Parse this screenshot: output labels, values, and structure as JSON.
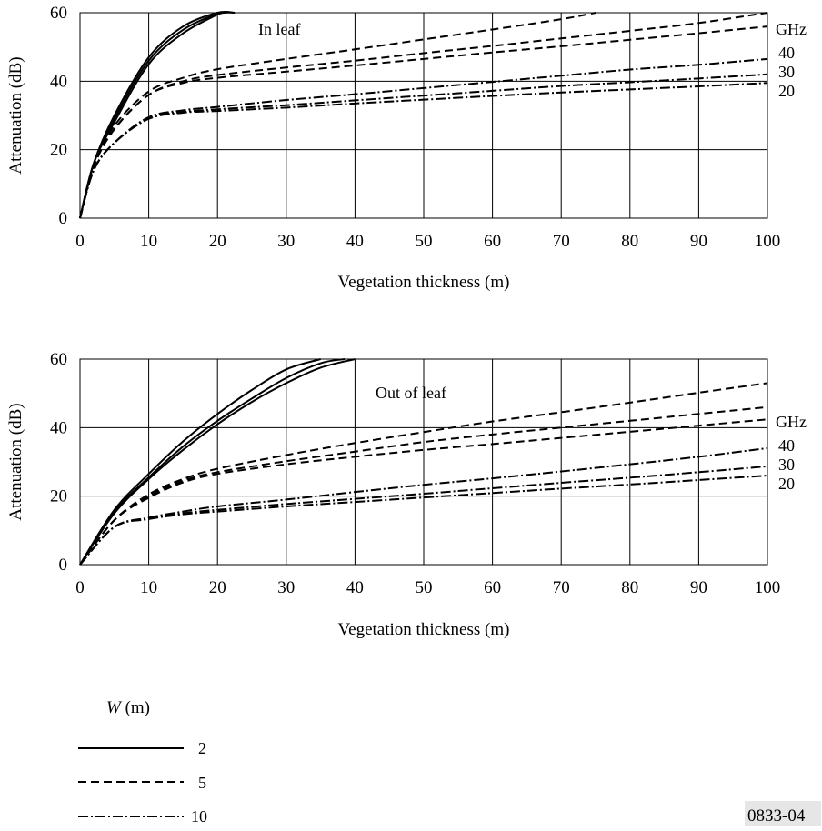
{
  "chart_data": [
    {
      "type": "line",
      "annotation": "In leaf",
      "xlabel": "Vegetation thickness (m)",
      "ylabel": "Attenuation (dB)",
      "xlim": [
        0,
        100
      ],
      "ylim": [
        0,
        60
      ],
      "xticks": [
        "0",
        "10",
        "20",
        "30",
        "40",
        "50",
        "60",
        "70",
        "80",
        "90",
        "100"
      ],
      "yticks": [
        "0",
        "20",
        "40",
        "60"
      ],
      "grid": true,
      "freq_unit": "GHz",
      "freq_labels": [
        "40",
        "30",
        "20"
      ],
      "series": [
        {
          "w": "2",
          "freq": "40",
          "style": "solid",
          "x": [
            0,
            2,
            5,
            10,
            15,
            20,
            22.5
          ],
          "y": [
            0,
            16,
            30,
            47,
            56,
            60,
            60
          ]
        },
        {
          "w": "2",
          "freq": "30",
          "style": "solid",
          "x": [
            0,
            2,
            5,
            10,
            15,
            20,
            22.5
          ],
          "y": [
            0,
            16,
            29,
            46,
            55,
            59.6,
            60
          ]
        },
        {
          "w": "2",
          "freq": "20",
          "style": "solid",
          "x": [
            0,
            2,
            5,
            10,
            15,
            20
          ],
          "y": [
            0,
            16,
            28,
            45,
            54,
            59.5
          ]
        },
        {
          "w": "5",
          "freq": "40",
          "style": "dashed",
          "x": [
            0,
            2,
            5,
            10,
            15,
            20,
            30,
            40,
            50,
            60,
            70,
            75
          ],
          "y": [
            0,
            15,
            27,
            37,
            41,
            43.5,
            46.5,
            49.3,
            52.2,
            55.1,
            58.1,
            60
          ]
        },
        {
          "w": "5",
          "freq": "30",
          "style": "dashed",
          "x": [
            0,
            2,
            5,
            10,
            15,
            20,
            30,
            40,
            50,
            60,
            70,
            80,
            90,
            100
          ],
          "y": [
            0,
            15,
            26,
            36,
            40,
            41.8,
            44,
            46,
            48.2,
            50.3,
            52.5,
            54.7,
            57,
            60
          ]
        },
        {
          "w": "5",
          "freq": "20",
          "style": "dashed",
          "x": [
            0,
            2,
            5,
            10,
            15,
            20,
            30,
            40,
            50,
            60,
            70,
            80,
            90,
            100
          ],
          "y": [
            0,
            15,
            26,
            36,
            39.5,
            41,
            42.8,
            44.6,
            46.5,
            48.4,
            50.2,
            52.1,
            54,
            56
          ]
        },
        {
          "w": "10",
          "freq": "40",
          "style": "dashdot",
          "x": [
            0,
            2,
            5,
            10,
            15,
            20,
            30,
            40,
            50,
            60,
            70,
            80,
            90,
            100
          ],
          "y": [
            0,
            14,
            22,
            29.5,
            31.5,
            32.5,
            34.5,
            36.2,
            38,
            39.8,
            41.6,
            43.4,
            44.8,
            46.5
          ]
        },
        {
          "w": "10",
          "freq": "30",
          "style": "dashdot",
          "x": [
            0,
            2,
            5,
            10,
            15,
            20,
            30,
            40,
            50,
            60,
            70,
            80,
            90,
            100
          ],
          "y": [
            0,
            14,
            22,
            29.3,
            31,
            31.8,
            33,
            34.4,
            35.8,
            37.2,
            38.6,
            39.7,
            40.8,
            42
          ]
        },
        {
          "w": "10",
          "freq": "20",
          "style": "dashdot",
          "x": [
            0,
            2,
            5,
            10,
            15,
            20,
            30,
            40,
            50,
            60,
            70,
            80,
            90,
            100
          ],
          "y": [
            0,
            14,
            22,
            29,
            30.8,
            31.3,
            32.3,
            33.5,
            34.6,
            35.7,
            36.7,
            37.6,
            38.5,
            39.5
          ]
        }
      ]
    },
    {
      "type": "line",
      "annotation": "Out of leaf",
      "xlabel": "Vegetation thickness (m)",
      "ylabel": "Attenuation (dB)",
      "xlim": [
        0,
        100
      ],
      "ylim": [
        0,
        60
      ],
      "xticks": [
        "0",
        "10",
        "20",
        "30",
        "40",
        "50",
        "60",
        "70",
        "80",
        "90",
        "100"
      ],
      "yticks": [
        "0",
        "20",
        "40",
        "60"
      ],
      "grid": true,
      "freq_unit": "GHz",
      "freq_labels": [
        "40",
        "30",
        "20"
      ],
      "series": [
        {
          "w": "2",
          "freq": "40",
          "style": "solid",
          "x": [
            0,
            5,
            10,
            15,
            20,
            25,
            30,
            35
          ],
          "y": [
            0,
            16,
            26.5,
            36,
            44,
            51,
            57,
            60
          ]
        },
        {
          "w": "2",
          "freq": "30",
          "style": "solid",
          "x": [
            0,
            5,
            10,
            15,
            20,
            25,
            30,
            35,
            38.5
          ],
          "y": [
            0,
            15.5,
            25.5,
            34.5,
            42,
            48.5,
            54.5,
            58.8,
            60
          ]
        },
        {
          "w": "2",
          "freq": "20",
          "style": "solid",
          "x": [
            0,
            5,
            10,
            15,
            20,
            25,
            30,
            35,
            40
          ],
          "y": [
            0,
            15,
            25,
            33.5,
            41,
            47.5,
            53,
            57.5,
            60
          ]
        },
        {
          "w": "5",
          "freq": "40",
          "style": "dashed",
          "x": [
            0,
            5,
            10,
            15,
            20,
            30,
            40,
            50,
            60,
            70,
            80,
            90,
            100
          ],
          "y": [
            0,
            13,
            20.5,
            25,
            28,
            32,
            35.5,
            38.7,
            41.8,
            44.5,
            47.3,
            50.2,
            53
          ]
        },
        {
          "w": "5",
          "freq": "30",
          "style": "dashed",
          "x": [
            0,
            5,
            10,
            15,
            20,
            30,
            40,
            50,
            60,
            70,
            80,
            90,
            100
          ],
          "y": [
            0,
            13,
            20,
            24.5,
            27,
            30.2,
            33,
            35.8,
            38,
            40,
            42,
            44,
            46
          ]
        },
        {
          "w": "5",
          "freq": "20",
          "style": "dashed",
          "x": [
            0,
            5,
            10,
            15,
            20,
            30,
            40,
            50,
            60,
            70,
            80,
            90,
            100
          ],
          "y": [
            0,
            13,
            19.5,
            24,
            26.5,
            29.3,
            31.5,
            33.5,
            35.2,
            37,
            38.8,
            40.6,
            42.4
          ]
        },
        {
          "w": "10",
          "freq": "40",
          "style": "dashdot",
          "x": [
            0,
            5,
            10,
            15,
            20,
            30,
            40,
            50,
            60,
            70,
            80,
            90,
            100
          ],
          "y": [
            0,
            11,
            13.7,
            15.5,
            17,
            19,
            21.2,
            23.3,
            25.2,
            27.2,
            29.3,
            31.5,
            34
          ]
        },
        {
          "w": "10",
          "freq": "30",
          "style": "dashdot",
          "x": [
            0,
            5,
            10,
            15,
            20,
            30,
            40,
            50,
            60,
            70,
            80,
            90,
            100
          ],
          "y": [
            0,
            11,
            13.5,
            15,
            16,
            17.7,
            19.2,
            20.7,
            22.3,
            23.9,
            25.4,
            27,
            28.7
          ]
        },
        {
          "w": "10",
          "freq": "20",
          "style": "dashdot",
          "x": [
            0,
            5,
            10,
            15,
            20,
            30,
            40,
            50,
            60,
            70,
            80,
            90,
            100
          ],
          "y": [
            0,
            11,
            13.3,
            14.7,
            15.5,
            17,
            18.3,
            19.6,
            20.9,
            22.2,
            23.4,
            24.7,
            26
          ]
        }
      ]
    }
  ],
  "legend": {
    "title_symbol": "W",
    "title_unit": " (m)",
    "items": [
      {
        "label": "2",
        "style": "solid"
      },
      {
        "label": "5",
        "style": "dashed"
      },
      {
        "label": "10",
        "style": "dashdot"
      }
    ]
  },
  "figure_id": "0833-04",
  "styles": {
    "solid": "",
    "dashed": "9 5",
    "dashdot": "11 3 2 3"
  },
  "colors": {
    "line": "#000000",
    "grid": "#000000",
    "background": "#ffffff"
  }
}
